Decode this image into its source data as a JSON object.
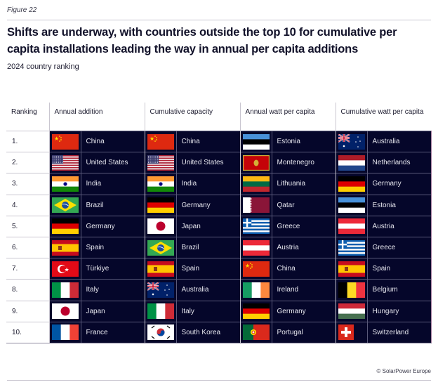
{
  "figure_label": "Figure 22",
  "title": "Shifts are underway, with countries outside the top 10 for cumulative per capita installations leading the way in annual per capita additions",
  "subtitle": "2024 country ranking",
  "copyright": "© SolarPower Europe",
  "table": {
    "headers": [
      "Ranking",
      "Annual addition",
      "Cumulative capacity",
      "Annual watt per capita",
      "Cumulative watt per capita"
    ],
    "rows": [
      {
        "rank": "1.",
        "cells": [
          {
            "country": "China",
            "flag": "cn"
          },
          {
            "country": "China",
            "flag": "cn"
          },
          {
            "country": "Estonia",
            "flag": "ee"
          },
          {
            "country": "Australia",
            "flag": "au"
          }
        ]
      },
      {
        "rank": "2.",
        "cells": [
          {
            "country": "United States",
            "flag": "us"
          },
          {
            "country": "United States",
            "flag": "us"
          },
          {
            "country": "Montenegro",
            "flag": "me"
          },
          {
            "country": "Netherlands",
            "flag": "nl"
          }
        ]
      },
      {
        "rank": "3.",
        "cells": [
          {
            "country": "India",
            "flag": "in"
          },
          {
            "country": "India",
            "flag": "in"
          },
          {
            "country": "Lithuania",
            "flag": "lt"
          },
          {
            "country": "Germany",
            "flag": "de"
          }
        ]
      },
      {
        "rank": "4.",
        "cells": [
          {
            "country": "Brazil",
            "flag": "br"
          },
          {
            "country": "Germany",
            "flag": "de"
          },
          {
            "country": "Qatar",
            "flag": "qa"
          },
          {
            "country": "Estonia",
            "flag": "ee"
          }
        ]
      },
      {
        "rank": "5.",
        "cells": [
          {
            "country": "Germany",
            "flag": "de"
          },
          {
            "country": "Japan",
            "flag": "jp"
          },
          {
            "country": "Greece",
            "flag": "gr"
          },
          {
            "country": "Austria",
            "flag": "at"
          }
        ]
      },
      {
        "rank": "6.",
        "cells": [
          {
            "country": "Spain",
            "flag": "es"
          },
          {
            "country": "Brazil",
            "flag": "br"
          },
          {
            "country": "Austria",
            "flag": "at"
          },
          {
            "country": "Greece",
            "flag": "gr"
          }
        ]
      },
      {
        "rank": "7.",
        "cells": [
          {
            "country": "Türkiye",
            "flag": "tr"
          },
          {
            "country": "Spain",
            "flag": "es"
          },
          {
            "country": "China",
            "flag": "cn"
          },
          {
            "country": "Spain",
            "flag": "es"
          }
        ]
      },
      {
        "rank": "8.",
        "cells": [
          {
            "country": "Italy",
            "flag": "it"
          },
          {
            "country": "Australia",
            "flag": "au"
          },
          {
            "country": "Ireland",
            "flag": "ie"
          },
          {
            "country": "Belgium",
            "flag": "be"
          }
        ]
      },
      {
        "rank": "9.",
        "cells": [
          {
            "country": "Japan",
            "flag": "jp"
          },
          {
            "country": "Italy",
            "flag": "it"
          },
          {
            "country": "Germany",
            "flag": "de"
          },
          {
            "country": "Hungary",
            "flag": "hu"
          }
        ]
      },
      {
        "rank": "10.",
        "cells": [
          {
            "country": "France",
            "flag": "fr"
          },
          {
            "country": "South Korea",
            "flag": "kr"
          },
          {
            "country": "Portugal",
            "flag": "pt"
          },
          {
            "country": "Switzerland",
            "flag": "ch"
          }
        ]
      }
    ]
  }
}
